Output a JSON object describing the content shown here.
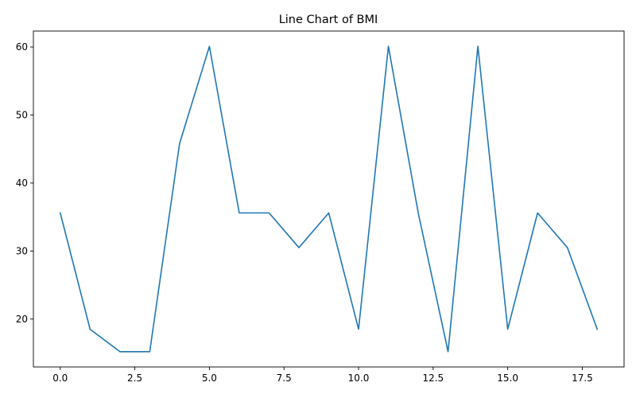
{
  "chart_data": {
    "type": "line",
    "title": "Line Chart of BMI",
    "xlabel": "",
    "ylabel": "",
    "x": [
      0,
      1,
      2,
      3,
      4,
      5,
      6,
      7,
      8,
      9,
      10,
      11,
      12,
      13,
      14,
      15,
      16,
      17,
      18
    ],
    "series": [
      {
        "values": [
          35.6,
          18.5,
          15.2,
          15.2,
          45.8,
          60.1,
          35.6,
          35.6,
          30.5,
          35.6,
          18.5,
          60.1,
          35.6,
          15.2,
          60.1,
          18.5,
          35.6,
          30.5,
          18.5
        ],
        "color": "#1f77b4"
      }
    ],
    "xlim": [
      -0.9,
      18.9
    ],
    "ylim": [
      12.95,
      62.35
    ],
    "xticks": [
      0.0,
      2.5,
      5.0,
      7.5,
      10.0,
      12.5,
      15.0,
      17.5
    ],
    "xtick_labels": [
      "0.0",
      "2.5",
      "5.0",
      "7.5",
      "10.0",
      "12.5",
      "15.0",
      "17.5"
    ],
    "yticks": [
      20,
      30,
      40,
      50,
      60
    ],
    "ytick_labels": [
      "20",
      "30",
      "40",
      "50",
      "60"
    ],
    "grid": false,
    "legend": "none"
  }
}
